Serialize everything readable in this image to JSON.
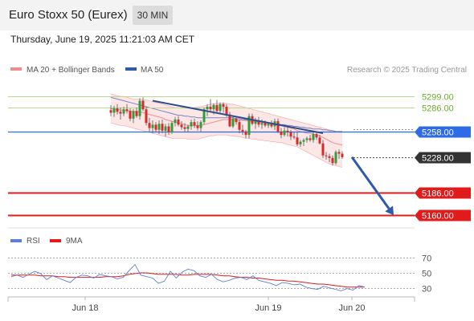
{
  "header": {
    "title": "Euro Stoxx 50 (Eurex)",
    "timeframe": "30 MIN",
    "datetime": "Thursday, June 19, 2025 11:21:03 AM CET"
  },
  "chart_data": [
    {
      "type": "candlestick",
      "legend": [
        {
          "name": "MA 20 + Bollinger Bands",
          "color": "#f08c8c"
        },
        {
          "name": "MA 50",
          "color": "#2e5aa7"
        }
      ],
      "legend_placement": "top-left",
      "credit": "Research © 2025 Trading Central",
      "ylim": [
        5147,
        5318
      ],
      "levels": [
        {
          "value": 5299.0,
          "label": "5299.00",
          "kind": "resistance",
          "color": "#6fab2f"
        },
        {
          "value": 5286.0,
          "label": "5286.00",
          "kind": "resistance",
          "color": "#6fab2f"
        },
        {
          "value": 5258.0,
          "label": "5258.00",
          "kind": "pivot",
          "color": "#2e6be6"
        },
        {
          "value": 5228.0,
          "label": "5228.00",
          "kind": "last",
          "color": "#333333"
        },
        {
          "value": 5186.0,
          "label": "5186.00",
          "kind": "support",
          "color": "#e11b1b"
        },
        {
          "value": 5160.0,
          "label": "5160.00",
          "kind": "support",
          "color": "#e11b1b"
        }
      ],
      "candles": [
        [
          5283,
          5289,
          5276,
          5280
        ],
        [
          5280,
          5288,
          5275,
          5285
        ],
        [
          5285,
          5290,
          5278,
          5281
        ],
        [
          5281,
          5286,
          5272,
          5279
        ],
        [
          5279,
          5287,
          5276,
          5284
        ],
        [
          5284,
          5290,
          5279,
          5282
        ],
        [
          5282,
          5285,
          5270,
          5273
        ],
        [
          5273,
          5284,
          5268,
          5282
        ],
        [
          5282,
          5286,
          5274,
          5276
        ],
        [
          5276,
          5297,
          5272,
          5294
        ],
        [
          5294,
          5298,
          5282,
          5284
        ],
        [
          5284,
          5287,
          5265,
          5268
        ],
        [
          5268,
          5274,
          5258,
          5262
        ],
        [
          5262,
          5271,
          5256,
          5266
        ],
        [
          5266,
          5269,
          5257,
          5260
        ],
        [
          5260,
          5271,
          5255,
          5267
        ],
        [
          5267,
          5272,
          5256,
          5259
        ],
        [
          5259,
          5267,
          5252,
          5264
        ],
        [
          5264,
          5268,
          5254,
          5257
        ],
        [
          5257,
          5270,
          5255,
          5268
        ],
        [
          5268,
          5275,
          5264,
          5272
        ],
        [
          5272,
          5276,
          5264,
          5266
        ],
        [
          5266,
          5270,
          5260,
          5263
        ],
        [
          5263,
          5268,
          5258,
          5261
        ],
        [
          5261,
          5266,
          5257,
          5264
        ],
        [
          5264,
          5272,
          5260,
          5269
        ],
        [
          5269,
          5273,
          5262,
          5265
        ],
        [
          5265,
          5270,
          5259,
          5262
        ],
        [
          5262,
          5271,
          5258,
          5269
        ],
        [
          5269,
          5286,
          5266,
          5284
        ],
        [
          5284,
          5290,
          5276,
          5287
        ],
        [
          5287,
          5296,
          5281,
          5284
        ],
        [
          5284,
          5291,
          5278,
          5289
        ],
        [
          5289,
          5295,
          5280,
          5282
        ],
        [
          5282,
          5292,
          5278,
          5290
        ],
        [
          5290,
          5292,
          5280,
          5287
        ],
        [
          5287,
          5290,
          5275,
          5278
        ],
        [
          5278,
          5281,
          5263,
          5264
        ],
        [
          5264,
          5276,
          5262,
          5273
        ],
        [
          5273,
          5276,
          5266,
          5269
        ],
        [
          5269,
          5272,
          5256,
          5260
        ],
        [
          5260,
          5266,
          5254,
          5258
        ],
        [
          5258,
          5260,
          5250,
          5254
        ],
        [
          5254,
          5279,
          5250,
          5276
        ],
        [
          5276,
          5279,
          5265,
          5267
        ],
        [
          5267,
          5274,
          5261,
          5271
        ],
        [
          5271,
          5275,
          5263,
          5266
        ],
        [
          5266,
          5272,
          5261,
          5268
        ],
        [
          5268,
          5271,
          5263,
          5265
        ],
        [
          5265,
          5269,
          5262,
          5267
        ],
        [
          5267,
          5271,
          5262,
          5264
        ],
        [
          5264,
          5273,
          5260,
          5270
        ],
        [
          5270,
          5273,
          5256,
          5258
        ],
        [
          5258,
          5262,
          5250,
          5254
        ],
        [
          5254,
          5263,
          5252,
          5259
        ],
        [
          5259,
          5263,
          5252,
          5257
        ],
        [
          5257,
          5260,
          5248,
          5252
        ],
        [
          5252,
          5257,
          5249,
          5251
        ],
        [
          5251,
          5257,
          5241,
          5243
        ],
        [
          5243,
          5248,
          5240,
          5246
        ],
        [
          5246,
          5250,
          5241,
          5248
        ],
        [
          5248,
          5252,
          5245,
          5250
        ],
        [
          5250,
          5254,
          5246,
          5248
        ],
        [
          5248,
          5257,
          5245,
          5255
        ],
        [
          5255,
          5258,
          5248,
          5251
        ],
        [
          5251,
          5254,
          5243,
          5244
        ],
        [
          5244,
          5248,
          5227,
          5230
        ],
        [
          5230,
          5234,
          5225,
          5229
        ],
        [
          5229,
          5232,
          5222,
          5227
        ],
        [
          5227,
          5230,
          5218,
          5221
        ],
        [
          5221,
          5236,
          5219,
          5234
        ],
        [
          5234,
          5237,
          5226,
          5232
        ],
        [
          5232,
          5235,
          5226,
          5228
        ]
      ],
      "ma50": [
        5298,
        5297,
        5296,
        5295,
        5294,
        5293,
        5292,
        5291,
        5290,
        5289,
        5288,
        5287,
        5286,
        5285,
        5284,
        5283,
        5282,
        5281,
        5280,
        5279,
        5278,
        5277,
        5277,
        5276,
        5276,
        5275,
        5275,
        5274,
        5274,
        5274,
        5274,
        5274,
        5274,
        5274,
        5274,
        5274,
        5274,
        5274,
        5274,
        5273,
        5273,
        5272,
        5272,
        5271,
        5271,
        5270,
        5270,
        5269,
        5269,
        5268,
        5268,
        5267,
        5267,
        5266,
        5266,
        5265,
        5265,
        5264,
        5264,
        5263,
        5263,
        5262,
        5262,
        5261,
        5261,
        5261,
        5260,
        5260,
        5259,
        5259,
        5258,
        5258,
        5258
      ],
      "ma20": [
        5285,
        5284,
        5284,
        5283,
        5283,
        5282,
        5282,
        5281,
        5281,
        5281,
        5280,
        5279,
        5278,
        5277,
        5276,
        5275,
        5274,
        5272,
        5271,
        5270,
        5269,
        5268,
        5267,
        5266,
        5265,
        5265,
        5265,
        5265,
        5265,
        5266,
        5267,
        5268,
        5269,
        5270,
        5271,
        5272,
        5272,
        5272,
        5272,
        5271,
        5271,
        5271,
        5271,
        5270,
        5270,
        5270,
        5269,
        5269,
        5268,
        5268,
        5267,
        5267,
        5266,
        5265,
        5264,
        5263,
        5262,
        5261,
        5259,
        5258,
        5257,
        5256,
        5256,
        5255,
        5254,
        5253,
        5251,
        5249,
        5247,
        5245,
        5244,
        5243,
        5242
      ],
      "bb_upper": [
        5302,
        5301,
        5300,
        5299,
        5299,
        5298,
        5297,
        5296,
        5296,
        5296,
        5295,
        5295,
        5294,
        5293,
        5292,
        5291,
        5290,
        5289,
        5288,
        5287,
        5286,
        5286,
        5286,
        5286,
        5286,
        5286,
        5286,
        5287,
        5287,
        5288,
        5289,
        5290,
        5290,
        5291,
        5291,
        5291,
        5291,
        5290,
        5290,
        5289,
        5288,
        5287,
        5286,
        5285,
        5284,
        5283,
        5282,
        5281,
        5280,
        5279,
        5278,
        5277,
        5276,
        5275,
        5274,
        5273,
        5272,
        5271,
        5270,
        5269,
        5268,
        5267,
        5266,
        5265,
        5264,
        5263,
        5262,
        5261,
        5260,
        5259,
        5258,
        5257,
        5257
      ],
      "bb_lower": [
        5268,
        5267,
        5266,
        5265,
        5265,
        5264,
        5263,
        5262,
        5261,
        5260,
        5259,
        5258,
        5257,
        5256,
        5255,
        5254,
        5253,
        5252,
        5251,
        5250,
        5250,
        5250,
        5250,
        5250,
        5249,
        5249,
        5249,
        5249,
        5250,
        5251,
        5252,
        5253,
        5253,
        5254,
        5254,
        5254,
        5254,
        5253,
        5253,
        5252,
        5252,
        5251,
        5250,
        5250,
        5249,
        5249,
        5248,
        5248,
        5247,
        5247,
        5246,
        5246,
        5245,
        5245,
        5244,
        5243,
        5242,
        5241,
        5240,
        5238,
        5236,
        5234,
        5232,
        5230,
        5228,
        5226,
        5224,
        5222,
        5220,
        5219,
        5218,
        5217,
        5216
      ],
      "trendline": {
        "from": {
          "index": 44,
          "value": 5294
        },
        "to": {
          "index": 97,
          "value": 5256
        }
      },
      "forecast_arrow": {
        "from": {
          "index": 106,
          "value": 5228
        },
        "to": {
          "index": 119,
          "value": 5160
        }
      }
    },
    {
      "type": "line",
      "legend": [
        {
          "name": "RSI",
          "color": "#5b7fd6"
        },
        {
          "name": "9MA",
          "color": "#e11b1b"
        }
      ],
      "ylim": [
        20,
        80
      ],
      "yticks": [
        70,
        50,
        30
      ],
      "xticks": [
        {
          "index": 23,
          "label": "Jun 18"
        },
        {
          "index": 80,
          "label": "Jun 19"
        },
        {
          "index": 106,
          "label": "Jun 20"
        }
      ],
      "rsi": [
        45,
        47,
        44,
        48,
        52,
        49,
        41,
        46,
        43,
        40,
        37,
        44,
        47,
        46,
        43,
        48,
        46,
        45,
        42,
        44,
        53,
        61,
        47,
        45,
        43,
        36,
        39,
        52,
        43,
        51,
        55,
        53,
        46,
        44,
        48,
        41,
        38,
        40,
        43,
        44,
        41,
        46,
        40,
        38,
        36,
        33,
        37,
        36,
        34,
        35,
        31,
        29,
        28,
        32,
        30,
        28,
        26,
        29,
        27,
        33,
        31
      ],
      "ma9": [
        47,
        47,
        47,
        47,
        47,
        46,
        46,
        46,
        45,
        45,
        44,
        44,
        44,
        44,
        44,
        44,
        45,
        45,
        45,
        46,
        48,
        49,
        50,
        50,
        49,
        48,
        48,
        48,
        48,
        47,
        47,
        48,
        48,
        48,
        48,
        47,
        46,
        46,
        45,
        44,
        44,
        43,
        43,
        42,
        41,
        40,
        40,
        39,
        39,
        38,
        37,
        36,
        35,
        35,
        34,
        33,
        32,
        31,
        31,
        31,
        31
      ]
    }
  ]
}
